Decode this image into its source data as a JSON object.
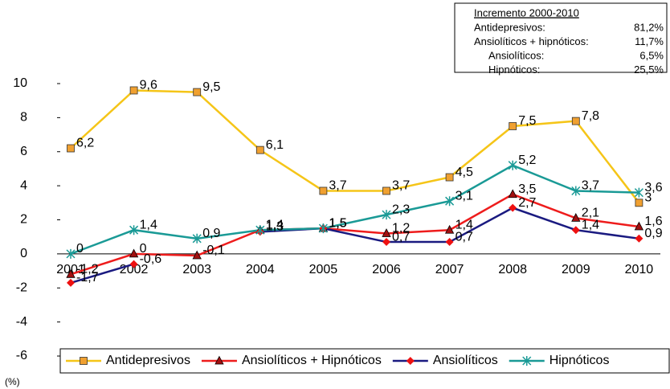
{
  "chart_data": {
    "type": "line",
    "categories": [
      "2001",
      "2002",
      "2003",
      "2004",
      "2005",
      "2006",
      "2007",
      "2008",
      "2009",
      "2010"
    ],
    "series": [
      {
        "name": "Antidepresivos",
        "color": "#f5c518",
        "marker_color": "#f0a030",
        "marker": "square",
        "values": [
          6.2,
          9.6,
          9.5,
          6.1,
          3.7,
          3.7,
          4.5,
          7.5,
          7.8,
          3
        ],
        "value_labels": [
          "6,2",
          "9,6",
          "9,5",
          "6,1",
          "3,7",
          "3,7",
          "4,5",
          "7,5",
          "7,8",
          "3"
        ]
      },
      {
        "name": "Ansiolíticos + Hipnóticos",
        "color": "#ee1c1c",
        "marker_color": "#a01010",
        "marker": "triangle",
        "values": [
          -1.2,
          0,
          -0.1,
          1.4,
          1.5,
          1.2,
          1.4,
          3.5,
          2.1,
          1.6
        ],
        "value_labels": [
          "-1,2",
          "0",
          "-0,1",
          "1,4",
          "1,5",
          "1,2",
          "1,4",
          "3,5",
          "2,1",
          "1,6"
        ]
      },
      {
        "name": "Ansiolíticos",
        "color": "#1a1a80",
        "marker_color": "#ee1111",
        "marker": "diamond",
        "values": [
          -1.7,
          -0.6,
          null,
          1.3,
          1.5,
          0.7,
          0.7,
          2.7,
          1.4,
          0.9
        ],
        "value_labels": [
          "-1,7",
          "-0,6",
          null,
          "1,3",
          "1,5",
          "0,7",
          "0,7",
          "2,7",
          "1,4",
          "0,9"
        ]
      },
      {
        "name": "Hipnóticos",
        "color": "#1a9a96",
        "marker_color": "#1a9a96",
        "marker": "asterisk",
        "values": [
          0,
          1.4,
          0.9,
          1.4,
          1.5,
          2.3,
          3.1,
          5.2,
          3.7,
          3.6
        ],
        "value_labels": [
          "0",
          "1,4",
          "0,9",
          "1,4",
          "1,5",
          "2,3",
          "3,1",
          "5,2",
          "3,7",
          "3,6"
        ]
      }
    ],
    "ylim": [
      -6,
      10
    ],
    "yticks": [
      -6,
      -4,
      -2,
      0,
      2,
      4,
      6,
      8,
      10
    ],
    "y_label": "(%)",
    "increment_table": {
      "title": "Incremento 2000-2010",
      "rows": [
        {
          "label": "Antidepresivos:",
          "value": "81,2%"
        },
        {
          "label": "Ansiolíticos + hipnóticos:",
          "value": "11,7%"
        },
        {
          "label": "Ansiolíticos:",
          "value": "6,5%"
        },
        {
          "label": "Hipnóticos:",
          "value": "25,5%"
        }
      ]
    }
  }
}
